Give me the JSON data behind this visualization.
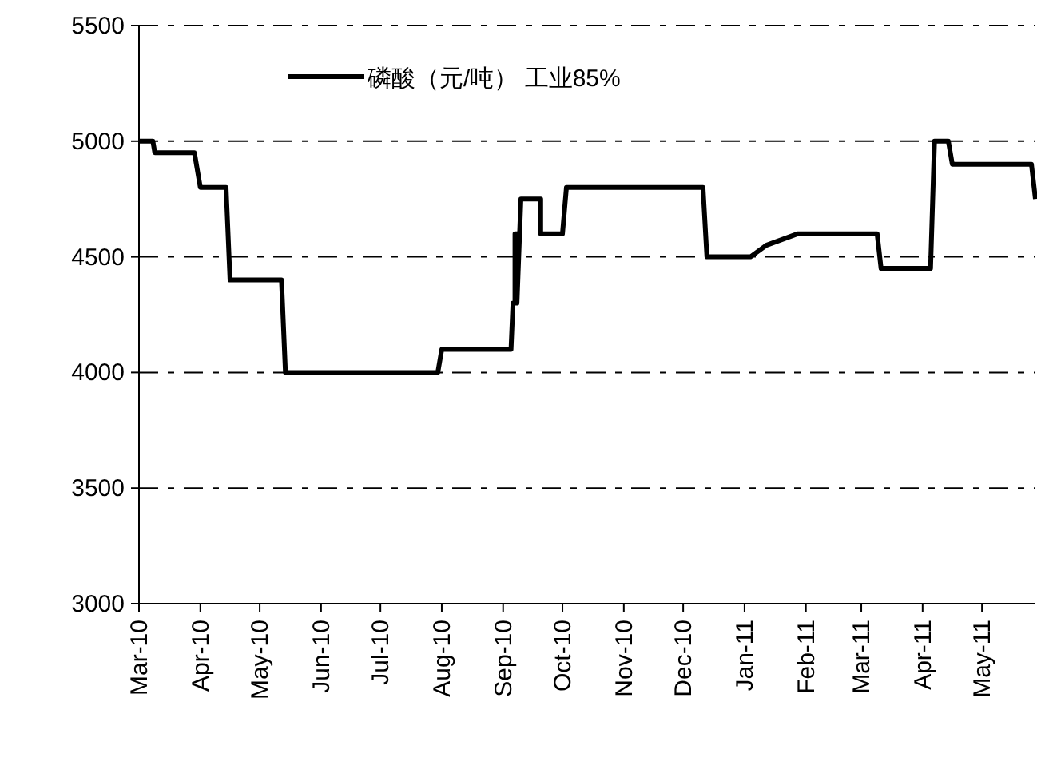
{
  "chart_data": {
    "type": "line",
    "x": [
      "2010-03-01",
      "2010-03-08",
      "2010-03-09",
      "2010-03-29",
      "2010-04-01",
      "2010-04-14",
      "2010-04-16",
      "2010-05-12",
      "2010-05-14",
      "2010-07-30",
      "2010-08-01",
      "2010-09-05",
      "2010-09-06",
      "2010-09-07",
      "2010-09-07",
      "2010-09-08",
      "2010-09-08",
      "2010-09-10",
      "2010-09-20",
      "2010-09-20",
      "2010-10-01",
      "2010-10-03",
      "2010-12-11",
      "2010-12-13",
      "2011-01-04",
      "2011-01-12",
      "2011-01-28",
      "2011-03-09",
      "2011-03-11",
      "2011-04-05",
      "2011-04-07",
      "2011-04-14",
      "2011-04-16",
      "2011-05-26",
      "2011-05-28"
    ],
    "series": [
      {
        "name": "磷酸（元/吨） 工业85%",
        "color": "#000000",
        "values": [
          5000,
          5000,
          4950,
          4950,
          4800,
          4800,
          4400,
          4400,
          4000,
          4000,
          4100,
          4100,
          4300,
          4300,
          4600,
          4600,
          4300,
          4750,
          4750,
          4600,
          4600,
          4800,
          4800,
          4500,
          4500,
          4550,
          4600,
          4600,
          4450,
          4450,
          5000,
          5000,
          4900,
          4900,
          4750
        ]
      }
    ],
    "xlim": [
      "2010-03-01",
      "2011-05-28"
    ],
    "xticks": [
      {
        "value": "2010-03-01",
        "label": "Mar-10"
      },
      {
        "value": "2010-04-01",
        "label": "Apr-10"
      },
      {
        "value": "2010-05-01",
        "label": "May-10"
      },
      {
        "value": "2010-06-01",
        "label": "Jun-10"
      },
      {
        "value": "2010-07-01",
        "label": "Jul-10"
      },
      {
        "value": "2010-08-01",
        "label": "Aug-10"
      },
      {
        "value": "2010-09-01",
        "label": "Sep-10"
      },
      {
        "value": "2010-10-01",
        "label": "Oct-10"
      },
      {
        "value": "2010-11-01",
        "label": "Nov-10"
      },
      {
        "value": "2010-12-01",
        "label": "Dec-10"
      },
      {
        "value": "2011-01-01",
        "label": "Jan-11"
      },
      {
        "value": "2011-02-01",
        "label": "Feb-11"
      },
      {
        "value": "2011-03-01",
        "label": "Mar-11"
      },
      {
        "value": "2011-04-01",
        "label": "Apr-11"
      },
      {
        "value": "2011-05-01",
        "label": "May-11"
      }
    ],
    "ylim": [
      3000,
      5500
    ],
    "yticks": [
      3000,
      3500,
      4000,
      4500,
      5000,
      5500
    ],
    "grid": "y",
    "legend": "top",
    "marker": "none",
    "line_style": "solid"
  }
}
